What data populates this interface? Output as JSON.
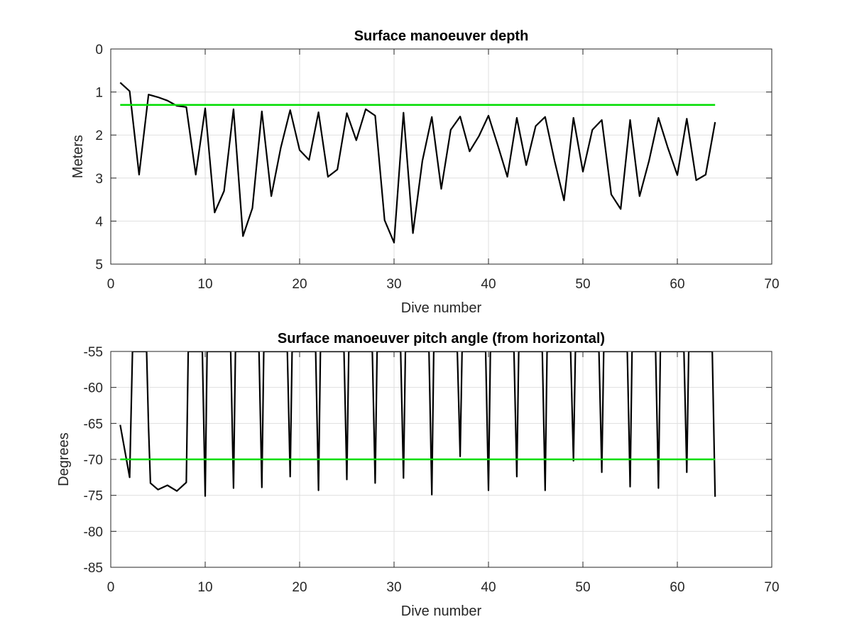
{
  "chart_data": [
    {
      "type": "line",
      "title": "Surface manoeuver depth",
      "xlabel": "Dive number",
      "ylabel": "Meters",
      "xlim": [
        0,
        70
      ],
      "ylim": [
        0,
        5
      ],
      "y_reversed": true,
      "grid": true,
      "xticks": [
        "0",
        "10",
        "20",
        "30",
        "40",
        "50",
        "60",
        "70"
      ],
      "yticks": [
        "0",
        "1",
        "2",
        "3",
        "4",
        "5"
      ],
      "series": [
        {
          "color": "#000000",
          "x": [
            1,
            2,
            3,
            4,
            5,
            6,
            7,
            8,
            9,
            10,
            11,
            12,
            13,
            14,
            15,
            16,
            17,
            18,
            19,
            20,
            21,
            22,
            23,
            24,
            25,
            26,
            27,
            28,
            29,
            30,
            31,
            32,
            33,
            34,
            35,
            36,
            37,
            38,
            39,
            40,
            41,
            42,
            43,
            44,
            45,
            46,
            47,
            48,
            49,
            50,
            51,
            52,
            53,
            54,
            55,
            56,
            57,
            58,
            59,
            60,
            61,
            62,
            63,
            64
          ],
          "values": [
            0.78,
            0.98,
            2.92,
            1.06,
            1.12,
            1.2,
            1.32,
            1.35,
            2.92,
            1.38,
            3.8,
            3.3,
            1.4,
            4.35,
            3.7,
            1.45,
            3.42,
            2.3,
            1.42,
            2.35,
            2.58,
            1.47,
            2.97,
            2.8,
            1.49,
            2.12,
            1.4,
            1.55,
            3.98,
            4.5,
            1.48,
            4.28,
            2.6,
            1.58,
            3.25,
            1.88,
            1.57,
            2.38,
            2.02,
            1.55,
            2.25,
            2.97,
            1.6,
            2.7,
            1.79,
            1.58,
            2.6,
            3.52,
            1.6,
            2.85,
            1.88,
            1.65,
            3.38,
            3.72,
            1.65,
            3.42,
            2.6,
            1.6,
            2.3,
            2.93,
            1.62,
            3.05,
            2.92,
            1.7
          ]
        },
        {
          "color": "#00dd00",
          "x": [
            1,
            64
          ],
          "values": [
            1.3,
            1.3
          ]
        }
      ]
    },
    {
      "type": "line",
      "title": "Surface manoeuver pitch angle (from horizontal)",
      "xlabel": "Dive number",
      "ylabel": "Degrees",
      "xlim": [
        0,
        70
      ],
      "ylim": [
        -85,
        -55
      ],
      "grid": true,
      "xticks": [
        "0",
        "10",
        "20",
        "30",
        "40",
        "50",
        "60",
        "70"
      ],
      "yticks": [
        "-55",
        "-60",
        "-65",
        "-70",
        "-75",
        "-80",
        "-85"
      ],
      "series": [
        {
          "color": "#000000",
          "x": [
            1,
            2,
            2.3,
            3.8,
            4,
            4.2,
            5,
            6,
            7,
            8,
            8.2,
            9.7,
            10,
            10.2,
            12.7,
            13,
            13.2,
            15.7,
            16,
            16.2,
            18.7,
            19,
            19.2,
            21.7,
            22,
            22.2,
            24.7,
            25,
            25.2,
            27.7,
            28,
            28.2,
            30.7,
            31,
            31.2,
            33.7,
            34,
            34.2,
            36.7,
            37,
            37.2,
            39.7,
            40,
            40.2,
            42.7,
            43,
            43.2,
            45.7,
            46,
            46.2,
            48.7,
            49,
            49.2,
            51.7,
            52,
            52.2,
            54.7,
            55,
            55.2,
            57.7,
            58,
            58.2,
            60.7,
            61,
            61.2,
            63.7,
            64
          ],
          "values": [
            -65.2,
            -72.5,
            -55,
            -55,
            -65.5,
            -73.3,
            -74.2,
            -73.6,
            -74.4,
            -73.2,
            -55,
            -55,
            -75.1,
            -55,
            -55,
            -74.0,
            -55,
            -55,
            -73.9,
            -55,
            -55,
            -72.4,
            -55,
            -55,
            -74.3,
            -55,
            -55,
            -72.8,
            -55,
            -55,
            -73.3,
            -55,
            -55,
            -72.6,
            -55,
            -55,
            -74.9,
            -55,
            -55,
            -69.6,
            -55,
            -55,
            -74.3,
            -55,
            -55,
            -72.4,
            -55,
            -55,
            -74.3,
            -55,
            -55,
            -70.2,
            -55,
            -55,
            -71.8,
            -55,
            -55,
            -73.8,
            -55,
            -55,
            -74.0,
            -55,
            -55,
            -71.8,
            -55,
            -55,
            -75.2
          ]
        },
        {
          "color": "#00dd00",
          "x": [
            1,
            64
          ],
          "values": [
            -70,
            -70
          ]
        }
      ]
    }
  ]
}
